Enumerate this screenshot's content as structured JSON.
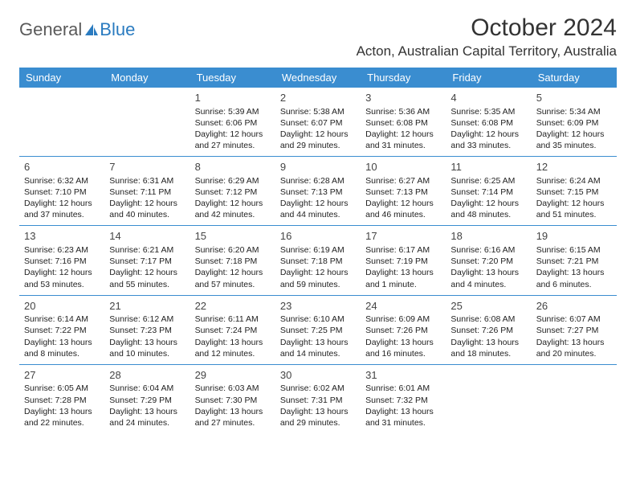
{
  "logo": {
    "text_general": "General",
    "text_blue": "Blue"
  },
  "title": "October 2024",
  "location": "Acton, Australian Capital Territory, Australia",
  "colors": {
    "header_bg": "#3a8dd0",
    "header_text": "#ffffff",
    "border": "#3a8dd0",
    "logo_gray": "#5a5a5a",
    "logo_blue": "#2a7bc0"
  },
  "day_headers": [
    "Sunday",
    "Monday",
    "Tuesday",
    "Wednesday",
    "Thursday",
    "Friday",
    "Saturday"
  ],
  "weeks": [
    [
      null,
      null,
      {
        "n": "1",
        "sr": "Sunrise: 5:39 AM",
        "ss": "Sunset: 6:06 PM",
        "d1": "Daylight: 12 hours",
        "d2": "and 27 minutes."
      },
      {
        "n": "2",
        "sr": "Sunrise: 5:38 AM",
        "ss": "Sunset: 6:07 PM",
        "d1": "Daylight: 12 hours",
        "d2": "and 29 minutes."
      },
      {
        "n": "3",
        "sr": "Sunrise: 5:36 AM",
        "ss": "Sunset: 6:08 PM",
        "d1": "Daylight: 12 hours",
        "d2": "and 31 minutes."
      },
      {
        "n": "4",
        "sr": "Sunrise: 5:35 AM",
        "ss": "Sunset: 6:08 PM",
        "d1": "Daylight: 12 hours",
        "d2": "and 33 minutes."
      },
      {
        "n": "5",
        "sr": "Sunrise: 5:34 AM",
        "ss": "Sunset: 6:09 PM",
        "d1": "Daylight: 12 hours",
        "d2": "and 35 minutes."
      }
    ],
    [
      {
        "n": "6",
        "sr": "Sunrise: 6:32 AM",
        "ss": "Sunset: 7:10 PM",
        "d1": "Daylight: 12 hours",
        "d2": "and 37 minutes."
      },
      {
        "n": "7",
        "sr": "Sunrise: 6:31 AM",
        "ss": "Sunset: 7:11 PM",
        "d1": "Daylight: 12 hours",
        "d2": "and 40 minutes."
      },
      {
        "n": "8",
        "sr": "Sunrise: 6:29 AM",
        "ss": "Sunset: 7:12 PM",
        "d1": "Daylight: 12 hours",
        "d2": "and 42 minutes."
      },
      {
        "n": "9",
        "sr": "Sunrise: 6:28 AM",
        "ss": "Sunset: 7:13 PM",
        "d1": "Daylight: 12 hours",
        "d2": "and 44 minutes."
      },
      {
        "n": "10",
        "sr": "Sunrise: 6:27 AM",
        "ss": "Sunset: 7:13 PM",
        "d1": "Daylight: 12 hours",
        "d2": "and 46 minutes."
      },
      {
        "n": "11",
        "sr": "Sunrise: 6:25 AM",
        "ss": "Sunset: 7:14 PM",
        "d1": "Daylight: 12 hours",
        "d2": "and 48 minutes."
      },
      {
        "n": "12",
        "sr": "Sunrise: 6:24 AM",
        "ss": "Sunset: 7:15 PM",
        "d1": "Daylight: 12 hours",
        "d2": "and 51 minutes."
      }
    ],
    [
      {
        "n": "13",
        "sr": "Sunrise: 6:23 AM",
        "ss": "Sunset: 7:16 PM",
        "d1": "Daylight: 12 hours",
        "d2": "and 53 minutes."
      },
      {
        "n": "14",
        "sr": "Sunrise: 6:21 AM",
        "ss": "Sunset: 7:17 PM",
        "d1": "Daylight: 12 hours",
        "d2": "and 55 minutes."
      },
      {
        "n": "15",
        "sr": "Sunrise: 6:20 AM",
        "ss": "Sunset: 7:18 PM",
        "d1": "Daylight: 12 hours",
        "d2": "and 57 minutes."
      },
      {
        "n": "16",
        "sr": "Sunrise: 6:19 AM",
        "ss": "Sunset: 7:18 PM",
        "d1": "Daylight: 12 hours",
        "d2": "and 59 minutes."
      },
      {
        "n": "17",
        "sr": "Sunrise: 6:17 AM",
        "ss": "Sunset: 7:19 PM",
        "d1": "Daylight: 13 hours",
        "d2": "and 1 minute."
      },
      {
        "n": "18",
        "sr": "Sunrise: 6:16 AM",
        "ss": "Sunset: 7:20 PM",
        "d1": "Daylight: 13 hours",
        "d2": "and 4 minutes."
      },
      {
        "n": "19",
        "sr": "Sunrise: 6:15 AM",
        "ss": "Sunset: 7:21 PM",
        "d1": "Daylight: 13 hours",
        "d2": "and 6 minutes."
      }
    ],
    [
      {
        "n": "20",
        "sr": "Sunrise: 6:14 AM",
        "ss": "Sunset: 7:22 PM",
        "d1": "Daylight: 13 hours",
        "d2": "and 8 minutes."
      },
      {
        "n": "21",
        "sr": "Sunrise: 6:12 AM",
        "ss": "Sunset: 7:23 PM",
        "d1": "Daylight: 13 hours",
        "d2": "and 10 minutes."
      },
      {
        "n": "22",
        "sr": "Sunrise: 6:11 AM",
        "ss": "Sunset: 7:24 PM",
        "d1": "Daylight: 13 hours",
        "d2": "and 12 minutes."
      },
      {
        "n": "23",
        "sr": "Sunrise: 6:10 AM",
        "ss": "Sunset: 7:25 PM",
        "d1": "Daylight: 13 hours",
        "d2": "and 14 minutes."
      },
      {
        "n": "24",
        "sr": "Sunrise: 6:09 AM",
        "ss": "Sunset: 7:26 PM",
        "d1": "Daylight: 13 hours",
        "d2": "and 16 minutes."
      },
      {
        "n": "25",
        "sr": "Sunrise: 6:08 AM",
        "ss": "Sunset: 7:26 PM",
        "d1": "Daylight: 13 hours",
        "d2": "and 18 minutes."
      },
      {
        "n": "26",
        "sr": "Sunrise: 6:07 AM",
        "ss": "Sunset: 7:27 PM",
        "d1": "Daylight: 13 hours",
        "d2": "and 20 minutes."
      }
    ],
    [
      {
        "n": "27",
        "sr": "Sunrise: 6:05 AM",
        "ss": "Sunset: 7:28 PM",
        "d1": "Daylight: 13 hours",
        "d2": "and 22 minutes."
      },
      {
        "n": "28",
        "sr": "Sunrise: 6:04 AM",
        "ss": "Sunset: 7:29 PM",
        "d1": "Daylight: 13 hours",
        "d2": "and 24 minutes."
      },
      {
        "n": "29",
        "sr": "Sunrise: 6:03 AM",
        "ss": "Sunset: 7:30 PM",
        "d1": "Daylight: 13 hours",
        "d2": "and 27 minutes."
      },
      {
        "n": "30",
        "sr": "Sunrise: 6:02 AM",
        "ss": "Sunset: 7:31 PM",
        "d1": "Daylight: 13 hours",
        "d2": "and 29 minutes."
      },
      {
        "n": "31",
        "sr": "Sunrise: 6:01 AM",
        "ss": "Sunset: 7:32 PM",
        "d1": "Daylight: 13 hours",
        "d2": "and 31 minutes."
      },
      null,
      null
    ]
  ]
}
